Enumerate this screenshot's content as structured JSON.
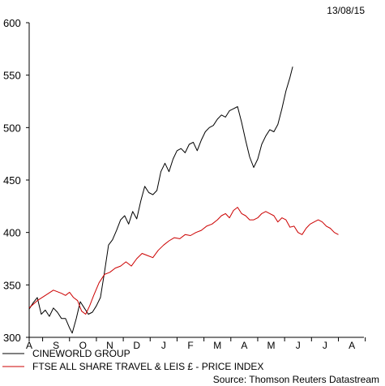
{
  "date_label": "13/08/15",
  "source": "Source: Thomson Reuters Datastream",
  "chart_data": {
    "type": "line",
    "ylim": [
      300,
      600
    ],
    "yticks": [
      300,
      350,
      400,
      450,
      500,
      550,
      600
    ],
    "xticklabels": [
      "A",
      "S",
      "O",
      "N",
      "D",
      "J",
      "F",
      "M",
      "A",
      "M",
      "J",
      "J",
      "A"
    ],
    "grid": false,
    "legend_position": "bottom-left",
    "series": [
      {
        "name": "CINEWORLD GROUP",
        "color": "#000000",
        "values": [
          327,
          333,
          338,
          322,
          326,
          320,
          328,
          324,
          318,
          318,
          309,
          304,
          318,
          334,
          328,
          322,
          324,
          330,
          338,
          362,
          388,
          393,
          402,
          412,
          416,
          408,
          420,
          413,
          430,
          444,
          438,
          436,
          440,
          458,
          466,
          458,
          470,
          478,
          480,
          476,
          484,
          486,
          478,
          488,
          496,
          500,
          502,
          508,
          512,
          510,
          516,
          518,
          520,
          505,
          488,
          472,
          462,
          470,
          484,
          492,
          498,
          496,
          503,
          518,
          535,
          548,
          558
        ],
        "x": [
          0.0,
          0.15,
          0.3,
          0.45,
          0.6,
          0.75,
          0.9,
          1.05,
          1.2,
          1.35,
          1.5,
          1.6,
          1.75,
          1.9,
          2.05,
          2.2,
          2.35,
          2.5,
          2.65,
          2.8,
          2.95,
          3.1,
          3.25,
          3.4,
          3.55,
          3.7,
          3.85,
          4.0,
          4.15,
          4.3,
          4.45,
          4.6,
          4.75,
          4.9,
          5.05,
          5.2,
          5.35,
          5.5,
          5.65,
          5.8,
          5.95,
          6.1,
          6.25,
          6.4,
          6.55,
          6.7,
          6.85,
          7.0,
          7.15,
          7.3,
          7.45,
          7.6,
          7.75,
          7.9,
          8.05,
          8.2,
          8.35,
          8.5,
          8.65,
          8.8,
          8.95,
          9.1,
          9.25,
          9.4,
          9.55,
          9.7,
          9.8
        ]
      },
      {
        "name": "FTSE ALL SHARE TRAVEL & LEIS £ - PRICE INDEX",
        "color": "#cc0000",
        "values": [
          328,
          335,
          340,
          345,
          342,
          340,
          343,
          338,
          335,
          325,
          322,
          330,
          340,
          352,
          360,
          362,
          366,
          368,
          372,
          368,
          375,
          380,
          378,
          376,
          383,
          388,
          392,
          395,
          394,
          398,
          397,
          400,
          402,
          406,
          408,
          412,
          416,
          418,
          414,
          421,
          424,
          418,
          416,
          412,
          412,
          414,
          418,
          420,
          418,
          416,
          410,
          414,
          412,
          405,
          406,
          400,
          398,
          404,
          408,
          410,
          412,
          410,
          406,
          404,
          400,
          398
        ],
        "x": [
          0.0,
          0.3,
          0.6,
          0.9,
          1.2,
          1.35,
          1.5,
          1.65,
          1.8,
          1.95,
          2.1,
          2.25,
          2.4,
          2.6,
          2.8,
          3.0,
          3.2,
          3.4,
          3.6,
          3.8,
          4.0,
          4.2,
          4.4,
          4.6,
          4.8,
          5.0,
          5.2,
          5.4,
          5.6,
          5.8,
          6.0,
          6.2,
          6.4,
          6.6,
          6.8,
          7.0,
          7.15,
          7.3,
          7.45,
          7.6,
          7.75,
          7.9,
          8.05,
          8.2,
          8.35,
          8.5,
          8.65,
          8.8,
          8.95,
          9.1,
          9.25,
          9.4,
          9.55,
          9.7,
          9.85,
          10.0,
          10.15,
          10.3,
          10.45,
          10.6,
          10.75,
          10.9,
          11.05,
          11.2,
          11.35,
          11.5
        ]
      }
    ]
  }
}
